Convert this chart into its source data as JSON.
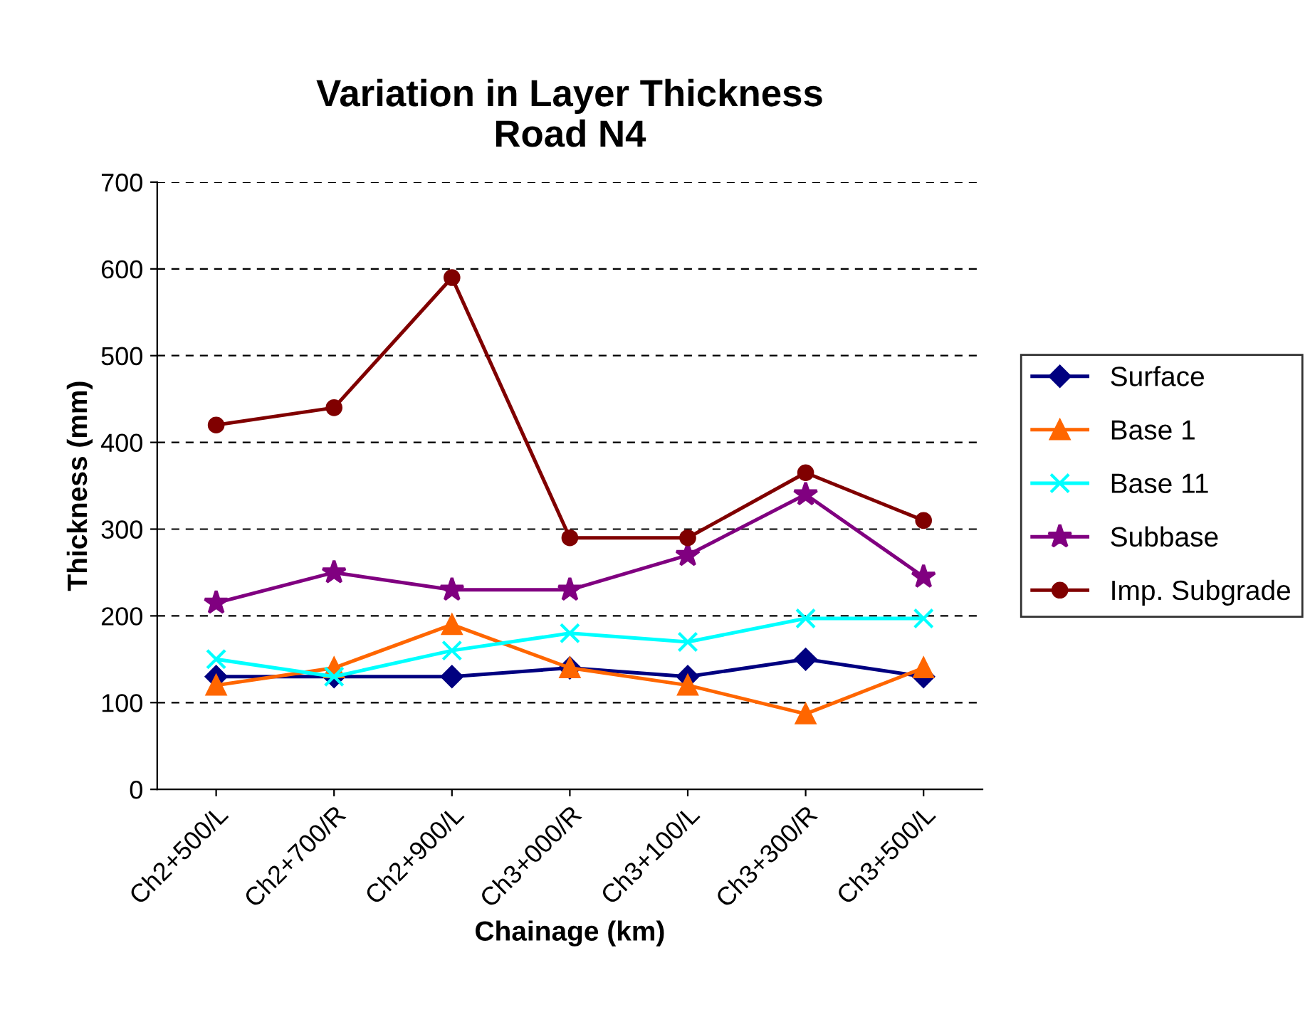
{
  "chart_data": {
    "type": "line",
    "title": "Variation in Layer Thickness\nRoad N4",
    "xlabel": "Chainage (km)",
    "ylabel": "Thickness (mm)",
    "categories": [
      "Ch2+500/L",
      "Ch2+700/R",
      "Ch2+900/L",
      "Ch3+000/R",
      "Ch3+100/L",
      "Ch3+300/R",
      "Ch3+500/L"
    ],
    "series": [
      {
        "name": "Surface",
        "color": "#000080",
        "marker": "diamond",
        "values": [
          130,
          130,
          130,
          140,
          130,
          150,
          130
        ]
      },
      {
        "name": "Base 1",
        "color": "#ff6600",
        "marker": "triangle",
        "values": [
          120,
          140,
          190,
          140,
          120,
          87,
          140
        ]
      },
      {
        "name": "Base 11",
        "color": "#00ffff",
        "marker": "cross",
        "values": [
          150,
          130,
          160,
          180,
          170,
          197,
          197
        ]
      },
      {
        "name": "Subbase",
        "color": "#800080",
        "marker": "star",
        "values": [
          215,
          250,
          230,
          230,
          270,
          340,
          245
        ]
      },
      {
        "name": "Imp. Subgrade",
        "color": "#800000",
        "marker": "circle",
        "values": [
          420,
          440,
          590,
          290,
          290,
          365,
          310
        ]
      }
    ],
    "ylim": [
      0,
      700
    ],
    "yticks": [
      0,
      100,
      200,
      300,
      400,
      500,
      600,
      700
    ],
    "grid": "y",
    "legend": "right",
    "line_style": "solid"
  }
}
